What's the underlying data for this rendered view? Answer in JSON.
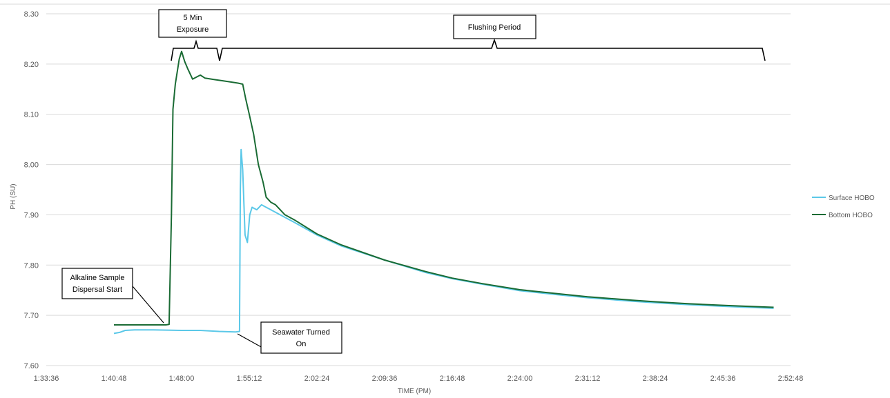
{
  "chart_data": {
    "type": "line",
    "title": "",
    "xlabel": "TIME (PM)",
    "ylabel": "PH (SU)",
    "ylim": [
      7.6,
      8.3
    ],
    "y_ticks": [
      "7.60",
      "7.70",
      "7.80",
      "7.90",
      "8.00",
      "8.10",
      "8.20",
      "8.30"
    ],
    "x_ticks": [
      "1:33:36",
      "1:40:48",
      "1:48:00",
      "1:55:12",
      "2:02:24",
      "2:09:36",
      "2:16:48",
      "2:24:00",
      "2:31:12",
      "2:38:24",
      "2:45:36",
      "2:52:48"
    ],
    "grid": true,
    "legend_position": "right",
    "series": [
      {
        "name": "Surface HOBO",
        "color": "#5bc8e8",
        "points": [
          [
            "1:40:48",
            7.664
          ],
          [
            "1:41:24",
            7.666
          ],
          [
            "1:42:00",
            7.67
          ],
          [
            "1:43:00",
            7.671
          ],
          [
            "1:45:00",
            7.671
          ],
          [
            "1:48:00",
            7.67
          ],
          [
            "1:50:00",
            7.67
          ],
          [
            "1:52:00",
            7.668
          ],
          [
            "1:53:45",
            7.667
          ],
          [
            "1:54:10",
            7.668
          ],
          [
            "1:54:15",
            7.95
          ],
          [
            "1:54:20",
            8.03
          ],
          [
            "1:54:30",
            7.99
          ],
          [
            "1:54:45",
            7.86
          ],
          [
            "1:55:00",
            7.845
          ],
          [
            "1:55:15",
            7.9
          ],
          [
            "1:55:30",
            7.915
          ],
          [
            "1:56:00",
            7.91
          ],
          [
            "1:56:30",
            7.92
          ],
          [
            "1:57:30",
            7.91
          ],
          [
            "1:59:00",
            7.895
          ],
          [
            "2:00:00",
            7.885
          ],
          [
            "2:02:24",
            7.86
          ],
          [
            "2:05:00",
            7.838
          ],
          [
            "2:09:36",
            7.81
          ],
          [
            "2:14:00",
            7.785
          ],
          [
            "2:16:48",
            7.773
          ],
          [
            "2:20:00",
            7.762
          ],
          [
            "2:24:00",
            7.749
          ],
          [
            "2:28:00",
            7.741
          ],
          [
            "2:31:12",
            7.735
          ],
          [
            "2:36:00",
            7.728
          ],
          [
            "2:38:24",
            7.725
          ],
          [
            "2:42:00",
            7.721
          ],
          [
            "2:45:36",
            7.718
          ],
          [
            "2:48:00",
            7.716
          ],
          [
            "2:51:00",
            7.714
          ]
        ]
      },
      {
        "name": "Bottom HOBO",
        "color": "#1a6b34",
        "points": [
          [
            "1:40:48",
            7.681
          ],
          [
            "1:44:00",
            7.681
          ],
          [
            "1:46:20",
            7.681
          ],
          [
            "1:46:40",
            7.682
          ],
          [
            "1:46:55",
            7.9
          ],
          [
            "1:47:05",
            8.11
          ],
          [
            "1:47:20",
            8.16
          ],
          [
            "1:47:45",
            8.21
          ],
          [
            "1:48:00",
            8.225
          ],
          [
            "1:48:20",
            8.205
          ],
          [
            "1:48:40",
            8.19
          ],
          [
            "1:49:10",
            8.17
          ],
          [
            "1:49:40",
            8.175
          ],
          [
            "1:50:00",
            8.178
          ],
          [
            "1:50:30",
            8.172
          ],
          [
            "1:51:30",
            8.169
          ],
          [
            "1:53:00",
            8.165
          ],
          [
            "1:54:00",
            8.162
          ],
          [
            "1:54:30",
            8.16
          ],
          [
            "1:54:50",
            8.13
          ],
          [
            "1:55:12",
            8.1
          ],
          [
            "1:55:40",
            8.06
          ],
          [
            "1:56:10",
            8.0
          ],
          [
            "1:56:40",
            7.965
          ],
          [
            "1:57:00",
            7.935
          ],
          [
            "1:57:30",
            7.925
          ],
          [
            "1:58:00",
            7.92
          ],
          [
            "1:59:00",
            7.9
          ],
          [
            "2:00:00",
            7.89
          ],
          [
            "2:02:24",
            7.862
          ],
          [
            "2:05:00",
            7.84
          ],
          [
            "2:09:36",
            7.81
          ],
          [
            "2:14:00",
            7.787
          ],
          [
            "2:16:48",
            7.774
          ],
          [
            "2:20:00",
            7.763
          ],
          [
            "2:24:00",
            7.751
          ],
          [
            "2:28:00",
            7.743
          ],
          [
            "2:31:12",
            7.737
          ],
          [
            "2:36:00",
            7.73
          ],
          [
            "2:38:24",
            7.727
          ],
          [
            "2:42:00",
            7.723
          ],
          [
            "2:45:36",
            7.72
          ],
          [
            "2:48:00",
            7.718
          ],
          [
            "2:51:00",
            7.716
          ]
        ]
      }
    ],
    "annotations": [
      {
        "id": "exposure",
        "lines": [
          "5 Min",
          "Exposure"
        ]
      },
      {
        "id": "flushing",
        "lines": [
          "Flushing Period"
        ]
      },
      {
        "id": "alkaline",
        "lines": [
          "Alkaline Sample",
          "Dispersal Start"
        ]
      },
      {
        "id": "seawater",
        "lines": [
          "Seawater Turned",
          "On"
        ]
      }
    ]
  }
}
